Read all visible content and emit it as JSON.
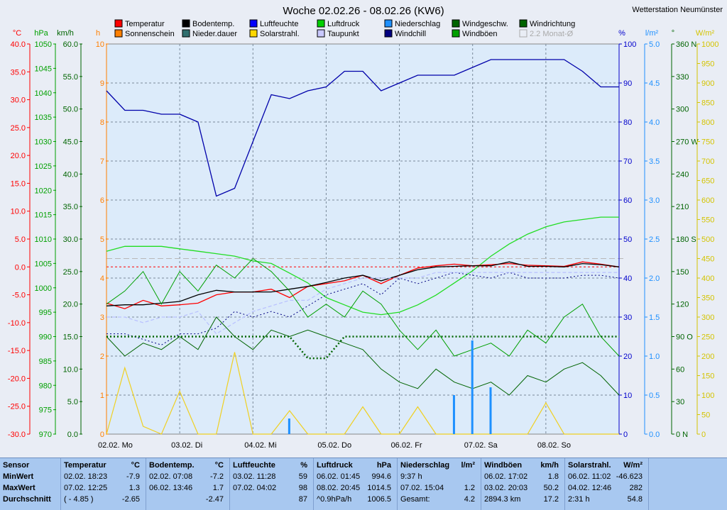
{
  "title": "Woche 02.02.26 - 08.02.26 (KW6)",
  "station": "Wetterstation Neumünster",
  "legend": [
    {
      "label": "Temperatur",
      "color": "#ff0000"
    },
    {
      "label": "Bodentemp.",
      "color": "#000000"
    },
    {
      "label": "Luftfeuchte",
      "color": "#0000ff"
    },
    {
      "label": "Luftdruck",
      "color": "#00d000"
    },
    {
      "label": "Niederschlag",
      "color": "#1e90ff"
    },
    {
      "label": "Windgeschw.",
      "color": "#006400"
    },
    {
      "label": "Windrichtung",
      "color": "#006400"
    },
    {
      "label": "Sonnenschein",
      "color": "#ff7f00"
    },
    {
      "label": "Nieder.dauer",
      "color": "#2f6f6f"
    },
    {
      "label": "Solarstrahl.",
      "color": "#ffd700"
    },
    {
      "label": "Taupunkt",
      "color": "#c8c8ff"
    },
    {
      "label": "Windchill",
      "color": "#000080"
    },
    {
      "label": "Windböen",
      "color": "#00a000"
    },
    {
      "label": "2.2 Monat-Ø",
      "color": "#aaaaaa"
    }
  ],
  "axes": {
    "temp": {
      "unit": "°C",
      "ticks": [
        "40.0",
        "35.0",
        "30.0",
        "25.0",
        "20.0",
        "15.0",
        "10.0",
        "5.0",
        "0.0",
        "-5.0",
        "-10.0",
        "-15.0",
        "-20.0",
        "-25.0",
        "-30.0"
      ],
      "color": "#ff0000"
    },
    "pressure": {
      "unit": "hPa",
      "ticks": [
        "1050",
        "1045",
        "1040",
        "1035",
        "1030",
        "1025",
        "1020",
        "1015",
        "1010",
        "1005",
        "1000",
        "995",
        "990",
        "985",
        "980",
        "975",
        "970"
      ],
      "color": "#00a000"
    },
    "wind": {
      "unit": "km/h",
      "ticks": [
        "60.0",
        "55.0",
        "50.0",
        "45.0",
        "40.0",
        "35.0",
        "30.0",
        "25.0",
        "20.0",
        "15.0",
        "10.0",
        "5.0",
        "0.0"
      ],
      "color": "#006400"
    },
    "sun": {
      "unit": "h",
      "ticks": [
        "10",
        "9",
        "8",
        "7",
        "6",
        "5",
        "4",
        "3",
        "2",
        "1",
        "0"
      ],
      "color": "#ff7f00"
    },
    "humidity": {
      "unit": "%",
      "ticks": [
        "100",
        "90",
        "80",
        "70",
        "60",
        "50",
        "40",
        "30",
        "20",
        "10",
        "0"
      ],
      "color": "#0000cc"
    },
    "rain": {
      "unit": "l/m²",
      "ticks": [
        "5.0",
        "4.5",
        "4.0",
        "3.5",
        "3.0",
        "2.5",
        "2.0",
        "1.5",
        "1.0",
        "0.5",
        "0.0"
      ],
      "color": "#1e90ff"
    },
    "dir": {
      "unit": "°",
      "ticks": [
        "360 N",
        "330",
        "300",
        "270 W",
        "240",
        "210",
        "180 S",
        "150",
        "120",
        "90 O",
        "60",
        "30",
        "0 N"
      ],
      "color": "#006400"
    },
    "solar": {
      "unit": "W/m²",
      "ticks": [
        "1000",
        "950",
        "900",
        "850",
        "800",
        "750",
        "700",
        "650",
        "600",
        "550",
        "500",
        "450",
        "400",
        "350",
        "300",
        "250",
        "200",
        "150",
        "100",
        "50",
        "0"
      ],
      "color": "#d4c400"
    }
  },
  "xlabels": [
    "02.02. Mo",
    "03.02. Di",
    "04.02. Mi",
    "05.02. Do",
    "06.02. Fr",
    "07.02. Sa",
    "08.02. So"
  ],
  "chart_data": {
    "type": "line",
    "title": "Woche 02.02.26 - 08.02.26 (KW6)",
    "x": [
      0,
      6,
      12,
      18,
      24,
      30,
      36,
      42,
      48,
      54,
      60,
      66,
      72,
      78,
      84,
      90,
      96,
      102,
      108,
      114,
      120,
      126,
      132,
      138,
      144,
      150,
      156,
      162,
      168
    ],
    "x_unit": "hours since 02.02. 00:00",
    "ylim_temp": [
      -30,
      40
    ],
    "series": [
      {
        "name": "Luftfeuchte",
        "unit": "%",
        "values": [
          88,
          83,
          83,
          82,
          82,
          80,
          61,
          63,
          75,
          87,
          86,
          88,
          89,
          93,
          93,
          88,
          90,
          92,
          92,
          92,
          94,
          96,
          96,
          96,
          96,
          96,
          93,
          89,
          89
        ]
      },
      {
        "name": "Luftdruck",
        "unit": "hPa",
        "values": [
          1007.5,
          1008.5,
          1008.5,
          1008.5,
          1008,
          1007.5,
          1007,
          1006.5,
          1005.5,
          1005,
          1003,
          1001,
          998,
          996.5,
          995,
          994.5,
          995,
          996.5,
          998.5,
          1001,
          1003.5,
          1006.5,
          1009,
          1011,
          1012.5,
          1013.5,
          1014,
          1014.5,
          1014.5
        ]
      },
      {
        "name": "Temperatur",
        "unit": "°C",
        "values": [
          -6.5,
          -7.5,
          -6,
          -7,
          -6.8,
          -6.5,
          -5,
          -4.5,
          -4.5,
          -4,
          -5.5,
          -3.5,
          -3,
          -2.5,
          -1.5,
          -3,
          -1.5,
          -0.2,
          0.2,
          0.5,
          0.2,
          0.4,
          0.6,
          0.3,
          0.2,
          0.1,
          0.9,
          0.5,
          0
        ]
      },
      {
        "name": "Bodentemp.",
        "unit": "°C",
        "values": [
          -7,
          -6.8,
          -6.8,
          -6.5,
          -6.2,
          -5,
          -4.2,
          -4.5,
          -4.5,
          -4.5,
          -4,
          -3.5,
          -2.8,
          -2,
          -1.5,
          -2.5,
          -1.5,
          -0.5,
          0,
          0.1,
          0.2,
          0.2,
          0.9,
          0.1,
          0.1,
          0,
          0.6,
          0.4,
          0
        ]
      },
      {
        "name": "Windchill",
        "unit": "°C",
        "values": [
          -12,
          -12,
          -13,
          -14,
          -12,
          -12,
          -11,
          -8,
          -9,
          -8,
          -9,
          -7,
          -5,
          -4,
          -3,
          -5,
          -2,
          -3,
          -2,
          -1,
          -1.5,
          -2,
          -1,
          -2,
          -2,
          -2,
          -1.5,
          -1.5,
          -2
        ]
      },
      {
        "name": "Taupunkt",
        "unit": "°C",
        "values": [
          -9,
          -9,
          -10,
          -9,
          -9,
          -8,
          -12,
          -10,
          -8,
          -7,
          -6,
          -6,
          -4,
          -3,
          -2,
          -2,
          -2,
          -2,
          -1,
          -1,
          -1,
          -1,
          -1,
          -1,
          -1,
          -1,
          -1,
          -1,
          -1
        ]
      },
      {
        "name": "Windgeschw.",
        "unit": "km/h",
        "values": [
          15,
          12,
          14,
          13,
          15,
          13,
          18,
          15,
          13,
          16,
          15,
          16,
          15,
          14,
          13,
          10,
          8,
          7,
          10,
          8,
          7,
          8,
          6,
          9,
          8,
          10,
          11,
          9,
          6
        ]
      },
      {
        "name": "Windböen",
        "unit": "km/h",
        "values": [
          20,
          22,
          25,
          20,
          25,
          22,
          26,
          24,
          27,
          25,
          22,
          18,
          20,
          18,
          22,
          20,
          16,
          13,
          16,
          12,
          13,
          14,
          12,
          16,
          14,
          18,
          20,
          15,
          12
        ]
      },
      {
        "name": "Windrichtung",
        "unit": "°",
        "values": [
          90,
          90,
          90,
          90,
          90,
          90,
          90,
          90,
          90,
          90,
          90,
          70,
          70,
          90,
          90,
          90,
          90,
          90,
          90,
          90,
          90,
          90,
          90,
          90,
          90,
          90,
          90,
          90,
          90
        ]
      },
      {
        "name": "Solarstrahl.",
        "unit": "W/m²",
        "values": [
          0,
          170,
          20,
          0,
          110,
          0,
          0,
          210,
          0,
          0,
          60,
          0,
          0,
          0,
          70,
          0,
          0,
          70,
          0,
          0,
          0,
          0,
          0,
          0,
          80,
          0,
          0,
          0,
          0
        ]
      },
      {
        "name": "Niederschlag",
        "unit": "l/m²",
        "values": [
          0,
          0,
          0,
          0,
          0,
          0,
          0,
          0,
          0,
          0,
          0.2,
          0,
          0,
          0,
          0,
          0,
          0,
          0,
          0,
          0.5,
          1.2,
          0.6,
          0,
          0,
          0,
          0,
          0,
          0,
          0
        ]
      }
    ]
  },
  "stats": {
    "rows": [
      "Sensor",
      "MinWert",
      "MaxWert",
      "Durchschnitt"
    ],
    "cols": [
      {
        "name": "Temperatur",
        "unit": "°C",
        "rows": [
          [
            "02.02.  18:23",
            "-7.9"
          ],
          [
            "07.02.  12:25",
            "1.3"
          ],
          [
            "( - 4.85 )",
            "-2.65"
          ]
        ]
      },
      {
        "name": "Bodentemp.",
        "unit": "°C",
        "rows": [
          [
            "02.02.  07:08",
            "-7.2"
          ],
          [
            "06.02.  13:46",
            "1.7"
          ],
          [
            "",
            "-2.47"
          ]
        ]
      },
      {
        "name": "Luftfeuchte",
        "unit": "%",
        "rows": [
          [
            "03.02.  11:28",
            "59"
          ],
          [
            "07.02.  04:02",
            "98"
          ],
          [
            "",
            "87"
          ]
        ]
      },
      {
        "name": "Luftdruck",
        "unit": "hPa",
        "rows": [
          [
            "06.02.  01:45",
            "994.6"
          ],
          [
            "08.02.  20:45",
            "1014.5"
          ],
          [
            "^0.9hPa/h",
            "1006.5"
          ]
        ]
      },
      {
        "name": "Niederschlag",
        "unit": "l/m²",
        "rows": [
          [
            "9:37 h",
            ""
          ],
          [
            "07.02.  15:04",
            "1.2"
          ],
          [
            "Gesamt:",
            "4.2"
          ]
        ]
      },
      {
        "name": "Windböen",
        "unit": "km/h",
        "rows": [
          [
            "06.02.  17:02",
            "1.8"
          ],
          [
            "03.02.  20:03",
            "50.2"
          ],
          [
            "2894.3 km",
            "17.2"
          ]
        ]
      },
      {
        "name": "Solarstrahl.",
        "unit": "W/m²",
        "rows": [
          [
            "06.02.  11:02",
            "-46.623"
          ],
          [
            "04.02.  12:46",
            "282"
          ],
          [
            "2:31 h",
            "54.8"
          ]
        ]
      }
    ]
  }
}
